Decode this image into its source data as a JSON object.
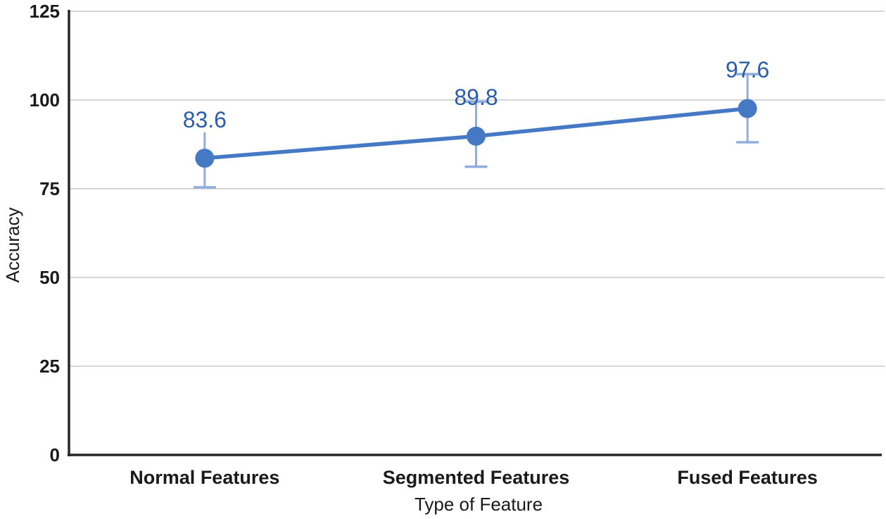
{
  "chart_data": {
    "type": "line",
    "title": "",
    "categories": [
      "Normal Features",
      "Segmented Features",
      "Fused Features"
    ],
    "series": [
      {
        "name": "Accuracy",
        "values": [
          83.6,
          89.8,
          97.6
        ]
      }
    ],
    "data_labels": [
      "83.6",
      "89.8",
      "97.6"
    ],
    "error_bars": [
      {
        "low": 75.4,
        "high": 90.9,
        "cap_top": false,
        "cap_bottom": true
      },
      {
        "low": 81.2,
        "high": 99.5,
        "cap_top": true,
        "cap_bottom": true
      },
      {
        "low": 88.1,
        "high": 107.3,
        "cap_top": true,
        "cap_bottom": true
      }
    ],
    "xlabel": "Type of Feature",
    "ylabel": "Accuracy",
    "ylim": [
      0,
      125
    ],
    "yticks": [
      0,
      25,
      50,
      75,
      100,
      125
    ],
    "grid": true,
    "legend_position": "none",
    "colors": {
      "line": "#4679c4",
      "marker": "#4679c4",
      "error_bar": "#8fadde",
      "data_label": "#2a5ea9",
      "gridline": "#c9c9c9",
      "axis": "#262626",
      "tick_text": "#1a1a1a"
    }
  }
}
